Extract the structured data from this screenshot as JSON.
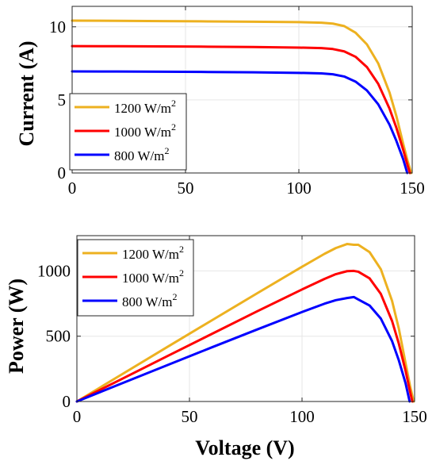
{
  "chart_data": [
    {
      "type": "line",
      "title": "",
      "xlabel": "",
      "ylabel": "Current (A)",
      "xlim": [
        0,
        150
      ],
      "ylim": [
        0,
        11.4
      ],
      "xticks": [
        "0",
        "50",
        "100",
        "150"
      ],
      "xtick_values": [
        0,
        50,
        100,
        150
      ],
      "yticks": [
        "0",
        "5",
        "10"
      ],
      "ytick_values": [
        0,
        5,
        10
      ],
      "grid": true,
      "legend_position": "bottom-left",
      "series": [
        {
          "legend_text": "1200 W/m",
          "legend_sup": "2",
          "color": "#EDB120",
          "x": [
            0,
            20,
            40,
            60,
            80,
            100,
            110,
            115,
            120,
            125,
            130,
            135,
            140,
            143,
            146,
            148,
            149.6
          ],
          "y": [
            10.42,
            10.41,
            10.39,
            10.37,
            10.35,
            10.32,
            10.28,
            10.22,
            10.05,
            9.6,
            8.8,
            7.5,
            5.5,
            3.9,
            2.0,
            0.8,
            0
          ]
        },
        {
          "legend_text": "1000 W/m",
          "legend_sup": "2",
          "color": "#FF0000",
          "x": [
            0,
            20,
            40,
            60,
            80,
            100,
            110,
            115,
            120,
            125,
            130,
            135,
            140,
            143,
            146,
            148,
            149.0
          ],
          "y": [
            8.68,
            8.67,
            8.66,
            8.64,
            8.62,
            8.58,
            8.54,
            8.48,
            8.32,
            7.95,
            7.25,
            6.1,
            4.4,
            3.1,
            1.6,
            0.5,
            0
          ]
        },
        {
          "legend_text": "800 W/m",
          "legend_sup": "2",
          "color": "#0000FF",
          "x": [
            0,
            20,
            40,
            60,
            80,
            100,
            110,
            115,
            120,
            125,
            130,
            135,
            140,
            143,
            146,
            147.8
          ],
          "y": [
            6.95,
            6.94,
            6.93,
            6.91,
            6.89,
            6.85,
            6.81,
            6.75,
            6.6,
            6.25,
            5.65,
            4.7,
            3.3,
            2.2,
            0.95,
            0
          ]
        }
      ]
    },
    {
      "type": "line",
      "title": "",
      "xlabel": "Voltage (V)",
      "ylabel": "Power (W)",
      "xlim": [
        0,
        150
      ],
      "ylim": [
        0,
        1270
      ],
      "xticks": [
        "0",
        "50",
        "100",
        "150"
      ],
      "xtick_values": [
        0,
        50,
        100,
        150
      ],
      "yticks": [
        "0",
        "500",
        "1000"
      ],
      "ytick_values": [
        0,
        500,
        1000
      ],
      "grid": true,
      "legend_position": "top-left",
      "series": [
        {
          "legend_text": "1200 W/m",
          "legend_sup": "2",
          "color": "#EDB120",
          "x": [
            0,
            20,
            40,
            60,
            80,
            100,
            110,
            115,
            120,
            123,
            125,
            130,
            135,
            140,
            143,
            146,
            148,
            149.6
          ],
          "y": [
            0,
            208,
            416,
            622,
            828,
            1032,
            1131,
            1175,
            1206,
            1200,
            1200,
            1144,
            1013,
            770,
            558,
            292,
            118,
            0
          ]
        },
        {
          "legend_text": "1000 W/m",
          "legend_sup": "2",
          "color": "#FF0000",
          "x": [
            0,
            20,
            40,
            60,
            80,
            100,
            110,
            115,
            120,
            123,
            125,
            130,
            135,
            140,
            143,
            146,
            148,
            149.0
          ],
          "y": [
            0,
            173,
            346,
            518,
            690,
            858,
            939,
            975,
            998,
            1000,
            994,
            943,
            824,
            616,
            443,
            234,
            74,
            0
          ]
        },
        {
          "legend_text": "800 W/m",
          "legend_sup": "2",
          "color": "#0000FF",
          "x": [
            0,
            20,
            40,
            60,
            80,
            100,
            110,
            115,
            120,
            123,
            125,
            130,
            135,
            140,
            143,
            146,
            147.8
          ],
          "y": [
            0,
            139,
            277,
            415,
            551,
            685,
            749,
            776,
            792,
            800,
            781,
            735,
            635,
            462,
            315,
            139,
            0
          ]
        }
      ]
    }
  ]
}
